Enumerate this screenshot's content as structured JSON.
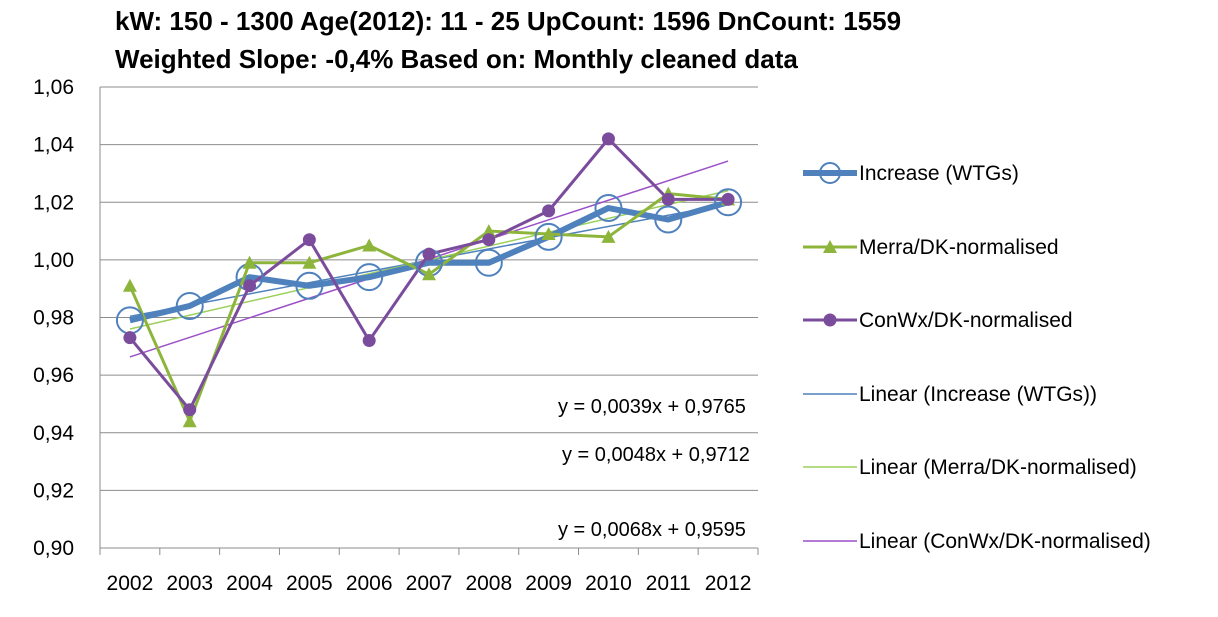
{
  "chart_data": {
    "type": "line",
    "title": "kW: 150 - 1300 Age(2012): 11 - 25 UpCount: 1596 DnCount: 1559",
    "subtitle": "Weighted Slope: -0,4% Based on: Monthly cleaned data",
    "categories": [
      "2002",
      "2003",
      "2004",
      "2005",
      "2006",
      "2007",
      "2008",
      "2009",
      "2010",
      "2011",
      "2012"
    ],
    "ylim": [
      0.9,
      1.06
    ],
    "yticks": [
      "0,90",
      "0,92",
      "0,94",
      "0,96",
      "0,98",
      "1,00",
      "1,02",
      "1,04",
      "1,06"
    ],
    "grid": true,
    "legend_position": "right",
    "series": [
      {
        "name": "Increase (WTGs)",
        "color": "#4f81bd",
        "marker": "open-circle",
        "values": [
          0.979,
          0.984,
          0.994,
          0.991,
          0.994,
          0.999,
          0.999,
          1.008,
          1.018,
          1.014,
          1.02
        ]
      },
      {
        "name": "Merra/DK-normalised",
        "color": "#8db53b",
        "marker": "triangle",
        "values": [
          0.991,
          0.944,
          0.999,
          0.999,
          1.005,
          0.995,
          1.01,
          1.009,
          1.008,
          1.023,
          1.021
        ]
      },
      {
        "name": "ConWx/DK-normalised",
        "color": "#7b4c9c",
        "marker": "filled-circle",
        "values": [
          0.973,
          0.948,
          0.991,
          1.007,
          0.972,
          1.002,
          1.007,
          1.017,
          1.042,
          1.021,
          1.021
        ]
      }
    ],
    "trendlines": [
      {
        "name": "Linear (Increase (WTGs))",
        "color": "#4f81bd",
        "slope": 0.0039,
        "intercept": 0.9765,
        "equation": "y = 0,0039x + 0,9765"
      },
      {
        "name": "Linear (Merra/DK-normalised)",
        "color": "#9bd05a",
        "slope": 0.0048,
        "intercept": 0.9712,
        "equation": "y = 0,0048x + 0,9712"
      },
      {
        "name": "Linear (ConWx/DK-normalised)",
        "color": "#9b4fc8",
        "slope": 0.0068,
        "intercept": 0.9595,
        "equation": "y = 0,0068x + 0,9595"
      }
    ]
  }
}
